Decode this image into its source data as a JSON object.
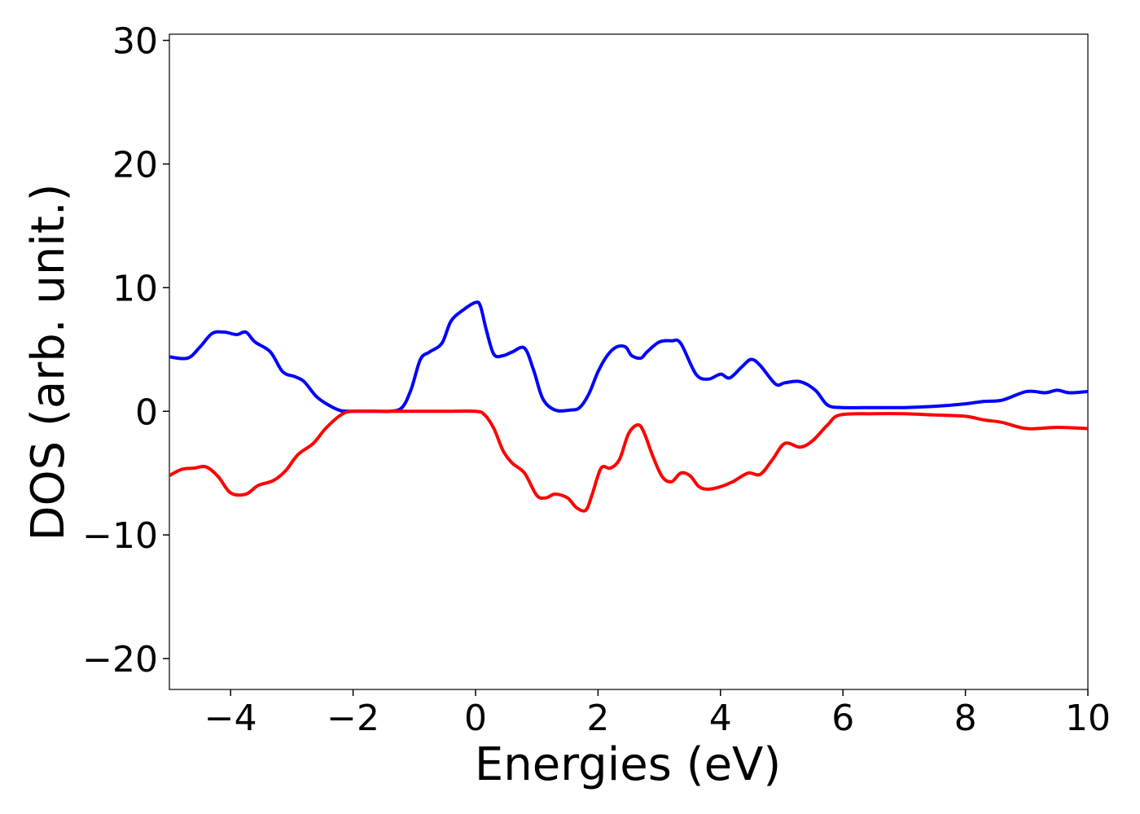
{
  "chart_data": {
    "type": "line",
    "title": "",
    "xlabel": "Energies (eV)",
    "ylabel": "DOS (arb. unit.)",
    "xlim": [
      -5,
      10
    ],
    "ylim": [
      -22.5,
      30.5
    ],
    "xticks": [
      -4,
      -2,
      0,
      2,
      4,
      6,
      8,
      10
    ],
    "yticks": [
      -20,
      -10,
      0,
      10,
      20,
      30
    ],
    "xtick_labels": [
      "−4",
      "−2",
      "0",
      "2",
      "4",
      "6",
      "8",
      "10"
    ],
    "ytick_labels": [
      "−20",
      "−10",
      "0",
      "10",
      "20",
      "30"
    ],
    "grid": false,
    "legend": "none",
    "series": [
      {
        "color": "#0000ff",
        "x": [
          -5.0,
          -4.7,
          -4.5,
          -4.3,
          -4.1,
          -3.9,
          -3.75,
          -3.6,
          -3.35,
          -3.15,
          -2.95,
          -2.8,
          -2.6,
          -2.4,
          -2.2,
          -2.0,
          -1.8,
          -1.6,
          -1.4,
          -1.2,
          -1.05,
          -0.9,
          -0.75,
          -0.55,
          -0.4,
          -0.2,
          0.0,
          0.08,
          0.18,
          0.3,
          0.45,
          0.6,
          0.8,
          0.95,
          1.1,
          1.3,
          1.55,
          1.7,
          1.85,
          2.0,
          2.15,
          2.3,
          2.45,
          2.55,
          2.7,
          2.8,
          3.0,
          3.2,
          3.35,
          3.6,
          3.8,
          4.0,
          4.15,
          4.35,
          4.5,
          4.65,
          4.9,
          5.05,
          5.3,
          5.55,
          5.75,
          6.0,
          6.5,
          7.0,
          7.5,
          8.0,
          8.3,
          8.6,
          9.0,
          9.3,
          9.5,
          9.7,
          10.0
        ],
        "values": [
          4.4,
          4.3,
          5.2,
          6.3,
          6.4,
          6.2,
          6.4,
          5.6,
          4.8,
          3.2,
          2.8,
          2.4,
          1.2,
          0.5,
          0.05,
          0.0,
          0.0,
          0.0,
          0.0,
          0.3,
          1.8,
          4.2,
          4.8,
          5.5,
          7.3,
          8.2,
          8.8,
          8.5,
          6.5,
          4.6,
          4.5,
          4.8,
          5.1,
          3.3,
          1.0,
          0.1,
          0.1,
          0.3,
          1.4,
          3.2,
          4.5,
          5.2,
          5.2,
          4.5,
          4.3,
          4.8,
          5.6,
          5.7,
          5.5,
          3.0,
          2.6,
          3.0,
          2.7,
          3.6,
          4.2,
          3.7,
          2.2,
          2.3,
          2.4,
          1.7,
          0.5,
          0.3,
          0.3,
          0.3,
          0.4,
          0.6,
          0.8,
          0.9,
          1.6,
          1.5,
          1.7,
          1.5,
          1.6
        ]
      },
      {
        "color": "#ff0000",
        "x": [
          -5.0,
          -4.8,
          -4.6,
          -4.4,
          -4.2,
          -4.0,
          -3.75,
          -3.55,
          -3.3,
          -3.1,
          -2.9,
          -2.65,
          -2.45,
          -2.2,
          -2.0,
          -1.5,
          -1.0,
          -0.5,
          0.0,
          0.15,
          0.3,
          0.45,
          0.6,
          0.8,
          1.0,
          1.15,
          1.3,
          1.5,
          1.65,
          1.8,
          1.9,
          2.05,
          2.2,
          2.35,
          2.5,
          2.65,
          2.75,
          2.9,
          3.05,
          3.2,
          3.35,
          3.5,
          3.65,
          3.8,
          4.0,
          4.2,
          4.45,
          4.65,
          4.85,
          5.05,
          5.3,
          5.5,
          5.75,
          5.95,
          6.5,
          7.0,
          7.5,
          8.0,
          8.3,
          8.6,
          9.0,
          9.5,
          10.0
        ],
        "values": [
          -5.2,
          -4.7,
          -4.6,
          -4.5,
          -5.3,
          -6.6,
          -6.7,
          -6.0,
          -5.6,
          -4.8,
          -3.5,
          -2.6,
          -1.4,
          -0.3,
          0.0,
          0.0,
          0.0,
          0.0,
          0.0,
          -0.3,
          -1.4,
          -3.2,
          -4.2,
          -5.0,
          -6.8,
          -7.0,
          -6.7,
          -7.0,
          -7.8,
          -8.0,
          -6.8,
          -4.6,
          -4.6,
          -3.9,
          -1.8,
          -1.1,
          -1.7,
          -3.7,
          -5.3,
          -5.7,
          -5.0,
          -5.2,
          -6.1,
          -6.3,
          -6.1,
          -5.7,
          -5.0,
          -5.1,
          -3.9,
          -2.6,
          -2.9,
          -2.4,
          -1.1,
          -0.3,
          -0.2,
          -0.2,
          -0.3,
          -0.4,
          -0.7,
          -0.9,
          -1.4,
          -1.3,
          -1.4
        ]
      }
    ]
  }
}
